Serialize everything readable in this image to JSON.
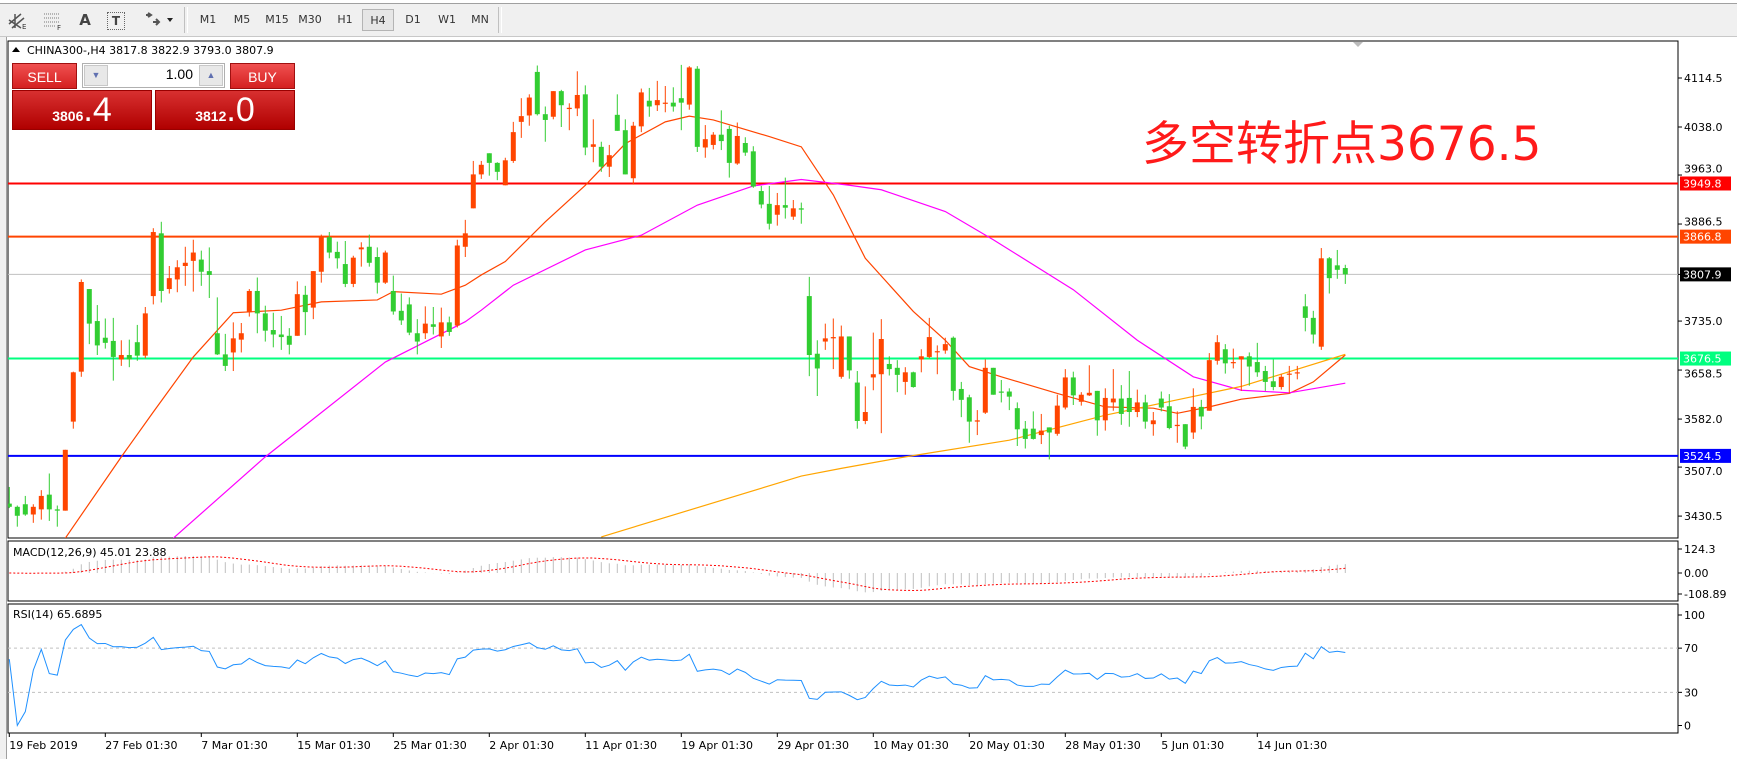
{
  "toolbar": {
    "icons": [
      "equidistant-channel-icon",
      "fibonacci-icon",
      "text-icon",
      "text-label-icon",
      "arrows-icon"
    ],
    "text_icon_label": "A",
    "text_label_icon_label": "T",
    "timeframes": [
      "M1",
      "M5",
      "M15",
      "M30",
      "H1",
      "H4",
      "D1",
      "W1",
      "MN"
    ],
    "active_timeframe": "H4"
  },
  "header": {
    "symbol": "CHINA300-,H4",
    "ohlc": "3817.8 3822.9 3793.0 3807.9"
  },
  "trade_panel": {
    "sell_label": "SELL",
    "buy_label": "BUY",
    "lot": "1.00",
    "sell_price_main": "3806",
    "sell_price_big": ".4",
    "buy_price_main": "3812",
    "buy_price_big": ".0",
    "color": "#d42020"
  },
  "annotation": {
    "text": "多空转折点3676.5",
    "color": "#ff1a1a"
  },
  "chart_data": {
    "type": "candlestick",
    "symbol": "CHINA300-",
    "timeframe": "H4",
    "y_ticks": [
      "4114.5",
      "4038.0",
      "3963.0",
      "3886.5",
      "3807.9",
      "3735.0",
      "3658.5",
      "3582.0",
      "3507.0",
      "3430.5"
    ],
    "x_labels": [
      "19 Feb 2019",
      "27 Feb 01:30",
      "7 Mar 01:30",
      "15 Mar 01:30",
      "25 Mar 01:30",
      "2 Apr 01:30",
      "11 Apr 01:30",
      "19 Apr 01:30",
      "29 Apr 01:30",
      "10 May 01:30",
      "20 May 01:30",
      "28 May 01:30",
      "5 Jun 01:30",
      "14 Jun 01:30"
    ],
    "x_label_every_bars": 12,
    "colors": {
      "bull": "#ff4500",
      "bear": "#32cd32"
    },
    "current_price": {
      "value": "3807.9",
      "color": "#000000"
    },
    "levels": [
      {
        "value": "3949.8",
        "color": "#ff0000"
      },
      {
        "value": "3866.8",
        "color": "#ff4500"
      },
      {
        "value": "3676.5",
        "color": "#00ff7f"
      },
      {
        "value": "3524.5",
        "color": "#0000ff"
      }
    ],
    "ohlc_columns": [
      "open",
      "high",
      "low",
      "close"
    ],
    "candles": [
      [
        3450,
        3476,
        3443,
        3445
      ],
      [
        3445,
        3447,
        3414,
        3431
      ],
      [
        3449,
        3462,
        3431,
        3433
      ],
      [
        3433,
        3449,
        3420,
        3445
      ],
      [
        3441,
        3471,
        3425,
        3462
      ],
      [
        3464,
        3497,
        3423,
        3441
      ],
      [
        3441,
        3447,
        3414,
        3439
      ],
      [
        3439,
        3534,
        3439,
        3534
      ],
      [
        3578,
        3656,
        3567,
        3655
      ],
      [
        3656,
        3800,
        3648,
        3796
      ],
      [
        3785,
        3785,
        3699,
        3731
      ],
      [
        3735,
        3760,
        3682,
        3697
      ],
      [
        3709,
        3739,
        3692,
        3701
      ],
      [
        3704,
        3740,
        3642,
        3679
      ],
      [
        3675,
        3705,
        3665,
        3682
      ],
      [
        3682,
        3706,
        3663,
        3675
      ],
      [
        3702,
        3729,
        3673,
        3681
      ],
      [
        3681,
        3757,
        3677,
        3747
      ],
      [
        3774,
        3880,
        3761,
        3874
      ],
      [
        3872,
        3890,
        3764,
        3782
      ],
      [
        3785,
        3821,
        3778,
        3802
      ],
      [
        3800,
        3830,
        3780,
        3819
      ],
      [
        3821,
        3851,
        3790,
        3826
      ],
      [
        3829,
        3862,
        3781,
        3842
      ],
      [
        3831,
        3845,
        3790,
        3812
      ],
      [
        3813,
        3850,
        3771,
        3807
      ],
      [
        3716,
        3772,
        3682,
        3683
      ],
      [
        3683,
        3715,
        3657,
        3665
      ],
      [
        3686,
        3733,
        3657,
        3708
      ],
      [
        3706,
        3732,
        3686,
        3716
      ],
      [
        3749,
        3785,
        3742,
        3782
      ],
      [
        3782,
        3803,
        3716,
        3747
      ],
      [
        3747,
        3759,
        3703,
        3720
      ],
      [
        3721,
        3748,
        3694,
        3714
      ],
      [
        3714,
        3743,
        3690,
        3710
      ],
      [
        3712,
        3724,
        3683,
        3698
      ],
      [
        3712,
        3797,
        3712,
        3777
      ],
      [
        3776,
        3790,
        3713,
        3749
      ],
      [
        3756,
        3813,
        3738,
        3813
      ],
      [
        3812,
        3870,
        3795,
        3867
      ],
      [
        3866,
        3874,
        3833,
        3842
      ],
      [
        3843,
        3859,
        3817,
        3833
      ],
      [
        3824,
        3860,
        3788,
        3793
      ],
      [
        3793,
        3837,
        3788,
        3834
      ],
      [
        3847,
        3858,
        3820,
        3850
      ],
      [
        3851,
        3870,
        3820,
        3826
      ],
      [
        3835,
        3850,
        3778,
        3795
      ],
      [
        3795,
        3845,
        3793,
        3842
      ],
      [
        3782,
        3806,
        3745,
        3750
      ],
      [
        3751,
        3778,
        3729,
        3736
      ],
      [
        3761,
        3772,
        3713,
        3717
      ],
      [
        3716,
        3738,
        3683,
        3703
      ],
      [
        3716,
        3758,
        3707,
        3731
      ],
      [
        3730,
        3757,
        3714,
        3726
      ],
      [
        3711,
        3756,
        3693,
        3733
      ],
      [
        3733,
        3742,
        3712,
        3718
      ],
      [
        3728,
        3862,
        3725,
        3853
      ],
      [
        3851,
        3893,
        3835,
        3872
      ],
      [
        3911,
        3985,
        3911,
        3964
      ],
      [
        3964,
        3985,
        3957,
        3979
      ],
      [
        3997,
        3997,
        3962,
        3982
      ],
      [
        3982,
        3983,
        3955,
        3968
      ],
      [
        3947,
        3990,
        3947,
        3986
      ],
      [
        3985,
        4046,
        3982,
        4030
      ],
      [
        4046,
        4083,
        4021,
        4055
      ],
      [
        4056,
        4089,
        4040,
        4084
      ],
      [
        4124,
        4134,
        4056,
        4058
      ],
      [
        4058,
        4070,
        4015,
        4049
      ],
      [
        4054,
        4094,
        4050,
        4094
      ],
      [
        4094,
        4096,
        4038,
        4072
      ],
      [
        4066,
        4075,
        4033,
        4068
      ],
      [
        4067,
        4125,
        4055,
        4088
      ],
      [
        4089,
        4103,
        3994,
        4006
      ],
      [
        4007,
        4050,
        3983,
        4011
      ],
      [
        4007,
        4015,
        3968,
        3976
      ],
      [
        3976,
        4010,
        3960,
        3994
      ],
      [
        4057,
        4089,
        4032,
        4032
      ],
      [
        4033,
        4050,
        3964,
        3964
      ],
      [
        3958,
        4046,
        3948,
        4040
      ],
      [
        4039,
        4098,
        4030,
        4092
      ],
      [
        4079,
        4099,
        4054,
        4070
      ],
      [
        4072,
        4110,
        4063,
        4080
      ],
      [
        4075,
        4102,
        4061,
        4076
      ],
      [
        4076,
        4100,
        4062,
        4070
      ],
      [
        4083,
        4135,
        4033,
        4076
      ],
      [
        4073,
        4133,
        4065,
        4131
      ],
      [
        4129,
        4133,
        3999,
        4007
      ],
      [
        4006,
        4041,
        3990,
        4019
      ],
      [
        4010,
        4030,
        4003,
        4026
      ],
      [
        4026,
        4064,
        4002,
        4016
      ],
      [
        4035,
        4040,
        3959,
        3982
      ],
      [
        3981,
        4045,
        3979,
        4024
      ],
      [
        4013,
        4022,
        3993,
        3998
      ],
      [
        4000,
        4008,
        3943,
        3945
      ],
      [
        3938,
        3946,
        3911,
        3917
      ],
      [
        3918,
        3946,
        3878,
        3887
      ],
      [
        3901,
        3935,
        3884,
        3916
      ],
      [
        3916,
        3959,
        3895,
        3912
      ],
      [
        3898,
        3924,
        3893,
        3911
      ],
      [
        3911,
        3920,
        3887,
        3909
      ],
      [
        3774,
        3804,
        3649,
        3682
      ],
      [
        3684,
        3705,
        3618,
        3661
      ],
      [
        3703,
        3731,
        3690,
        3708
      ],
      [
        3708,
        3739,
        3660,
        3710
      ],
      [
        3648,
        3728,
        3645,
        3711
      ],
      [
        3711,
        3711,
        3645,
        3658
      ],
      [
        3639,
        3657,
        3567,
        3579
      ],
      [
        3579,
        3633,
        3574,
        3593
      ],
      [
        3647,
        3717,
        3627,
        3652
      ],
      [
        3652,
        3738,
        3560,
        3707
      ],
      [
        3668,
        3680,
        3650,
        3660
      ],
      [
        3662,
        3674,
        3624,
        3651
      ],
      [
        3640,
        3663,
        3620,
        3655
      ],
      [
        3655,
        3656,
        3631,
        3632
      ],
      [
        3675,
        3691,
        3655,
        3680
      ],
      [
        3679,
        3740,
        3677,
        3710
      ],
      [
        3687,
        3697,
        3652,
        3688
      ],
      [
        3689,
        3709,
        3684,
        3699
      ],
      [
        3709,
        3711,
        3611,
        3626
      ],
      [
        3629,
        3640,
        3585,
        3612
      ],
      [
        3616,
        3620,
        3545,
        3578
      ],
      [
        3578,
        3596,
        3557,
        3580
      ],
      [
        3592,
        3675,
        3590,
        3662
      ],
      [
        3662,
        3662,
        3620,
        3620
      ],
      [
        3625,
        3643,
        3608,
        3624
      ],
      [
        3625,
        3630,
        3596,
        3617
      ],
      [
        3599,
        3608,
        3540,
        3566
      ],
      [
        3567,
        3579,
        3536,
        3551
      ],
      [
        3567,
        3594,
        3550,
        3551
      ],
      [
        3557,
        3590,
        3543,
        3564
      ],
      [
        3569,
        3569,
        3519,
        3561
      ],
      [
        3559,
        3620,
        3556,
        3603
      ],
      [
        3600,
        3660,
        3597,
        3647
      ],
      [
        3647,
        3656,
        3604,
        3619
      ],
      [
        3609,
        3624,
        3603,
        3620
      ],
      [
        3619,
        3666,
        3618,
        3623
      ],
      [
        3626,
        3626,
        3556,
        3580
      ],
      [
        3580,
        3630,
        3564,
        3615
      ],
      [
        3608,
        3660,
        3595,
        3614
      ],
      [
        3614,
        3635,
        3573,
        3590
      ],
      [
        3615,
        3657,
        3570,
        3593
      ],
      [
        3593,
        3628,
        3585,
        3608
      ],
      [
        3608,
        3620,
        3567,
        3578
      ],
      [
        3574,
        3593,
        3556,
        3580
      ],
      [
        3614,
        3625,
        3594,
        3600
      ],
      [
        3602,
        3621,
        3566,
        3568
      ],
      [
        3571,
        3594,
        3545,
        3573
      ],
      [
        3574,
        3574,
        3535,
        3539
      ],
      [
        3561,
        3630,
        3551,
        3601
      ],
      [
        3601,
        3612,
        3566,
        3586
      ],
      [
        3595,
        3685,
        3595,
        3674
      ],
      [
        3673,
        3713,
        3667,
        3702
      ],
      [
        3691,
        3699,
        3653,
        3669
      ],
      [
        3670,
        3692,
        3661,
        3671
      ],
      [
        3675,
        3680,
        3626,
        3680
      ],
      [
        3680,
        3686,
        3634,
        3664
      ],
      [
        3671,
        3701,
        3648,
        3655
      ],
      [
        3657,
        3665,
        3626,
        3640
      ],
      [
        3641,
        3675,
        3627,
        3632
      ],
      [
        3632,
        3652,
        3628,
        3648
      ],
      [
        3652,
        3665,
        3622,
        3653
      ],
      [
        3654,
        3665,
        3644,
        3655
      ],
      [
        3758,
        3777,
        3719,
        3740
      ],
      [
        3740,
        3751,
        3700,
        3714
      ],
      [
        3695,
        3849,
        3690,
        3833
      ],
      [
        3833,
        3835,
        3778,
        3802
      ],
      [
        3822,
        3846,
        3801,
        3815
      ],
      [
        3817.8,
        3822.9,
        3793.0,
        3807.9
      ]
    ],
    "moving_averages": [
      {
        "color": "#ff4500",
        "points": [
          [
            7,
            3396
          ],
          [
            14,
            3523
          ],
          [
            18,
            3593
          ],
          [
            23,
            3679
          ],
          [
            28,
            3748
          ],
          [
            34,
            3752
          ],
          [
            39,
            3765
          ],
          [
            46,
            3768
          ],
          [
            48,
            3781
          ],
          [
            54,
            3777
          ],
          [
            57,
            3791
          ],
          [
            59,
            3807
          ],
          [
            62,
            3828
          ],
          [
            67,
            3890
          ],
          [
            72,
            3947
          ],
          [
            77,
            4012
          ],
          [
            82,
            4046
          ],
          [
            85,
            4055
          ],
          [
            88,
            4049
          ],
          [
            95,
            4023
          ],
          [
            99,
            4007
          ],
          [
            103,
            3932
          ],
          [
            107,
            3833
          ],
          [
            113,
            3750
          ],
          [
            117,
            3705
          ],
          [
            120,
            3664
          ],
          [
            124,
            3648
          ],
          [
            131,
            3622
          ],
          [
            137,
            3601
          ],
          [
            143,
            3599
          ],
          [
            146,
            3591
          ],
          [
            150,
            3601
          ],
          [
            154,
            3613
          ],
          [
            160,
            3622
          ],
          [
            163,
            3640
          ],
          [
            167,
            3682
          ]
        ]
      },
      {
        "color": "#ff00ff",
        "points": [
          [
            20.5,
            3396
          ],
          [
            32,
            3523
          ],
          [
            47,
            3671
          ],
          [
            57,
            3734
          ],
          [
            59,
            3752
          ],
          [
            63,
            3791
          ],
          [
            72,
            3846
          ],
          [
            79,
            3869
          ],
          [
            86,
            3916
          ],
          [
            93,
            3946
          ],
          [
            99,
            3956
          ],
          [
            105,
            3947
          ],
          [
            109,
            3940
          ],
          [
            117,
            3906
          ],
          [
            123,
            3862
          ],
          [
            133,
            3784
          ],
          [
            141,
            3705
          ],
          [
            148,
            3648
          ],
          [
            154,
            3627
          ],
          [
            160,
            3623
          ],
          [
            167,
            3638
          ]
        ]
      },
      {
        "color": "#ffa500",
        "points": [
          [
            74,
            3398
          ],
          [
            99,
            3493
          ],
          [
            104,
            3505
          ],
          [
            112,
            3523
          ],
          [
            125,
            3549
          ],
          [
            137,
            3588
          ],
          [
            146,
            3612
          ],
          [
            154,
            3633
          ],
          [
            160,
            3656
          ],
          [
            167,
            3683
          ]
        ]
      }
    ],
    "macd": {
      "label": "MACD(12,26,9) 45.01 23.88",
      "ticks": [
        "124.3",
        "0.00",
        "-108.89"
      ],
      "hist_color": "#c0c0c0",
      "signal_color": "#ff0000"
    },
    "rsi": {
      "label": "RSI(14) 65.6895",
      "ticks": [
        "100",
        "70",
        "30",
        "0"
      ],
      "levels": [
        70,
        30
      ],
      "color": "#1e90ff"
    }
  }
}
